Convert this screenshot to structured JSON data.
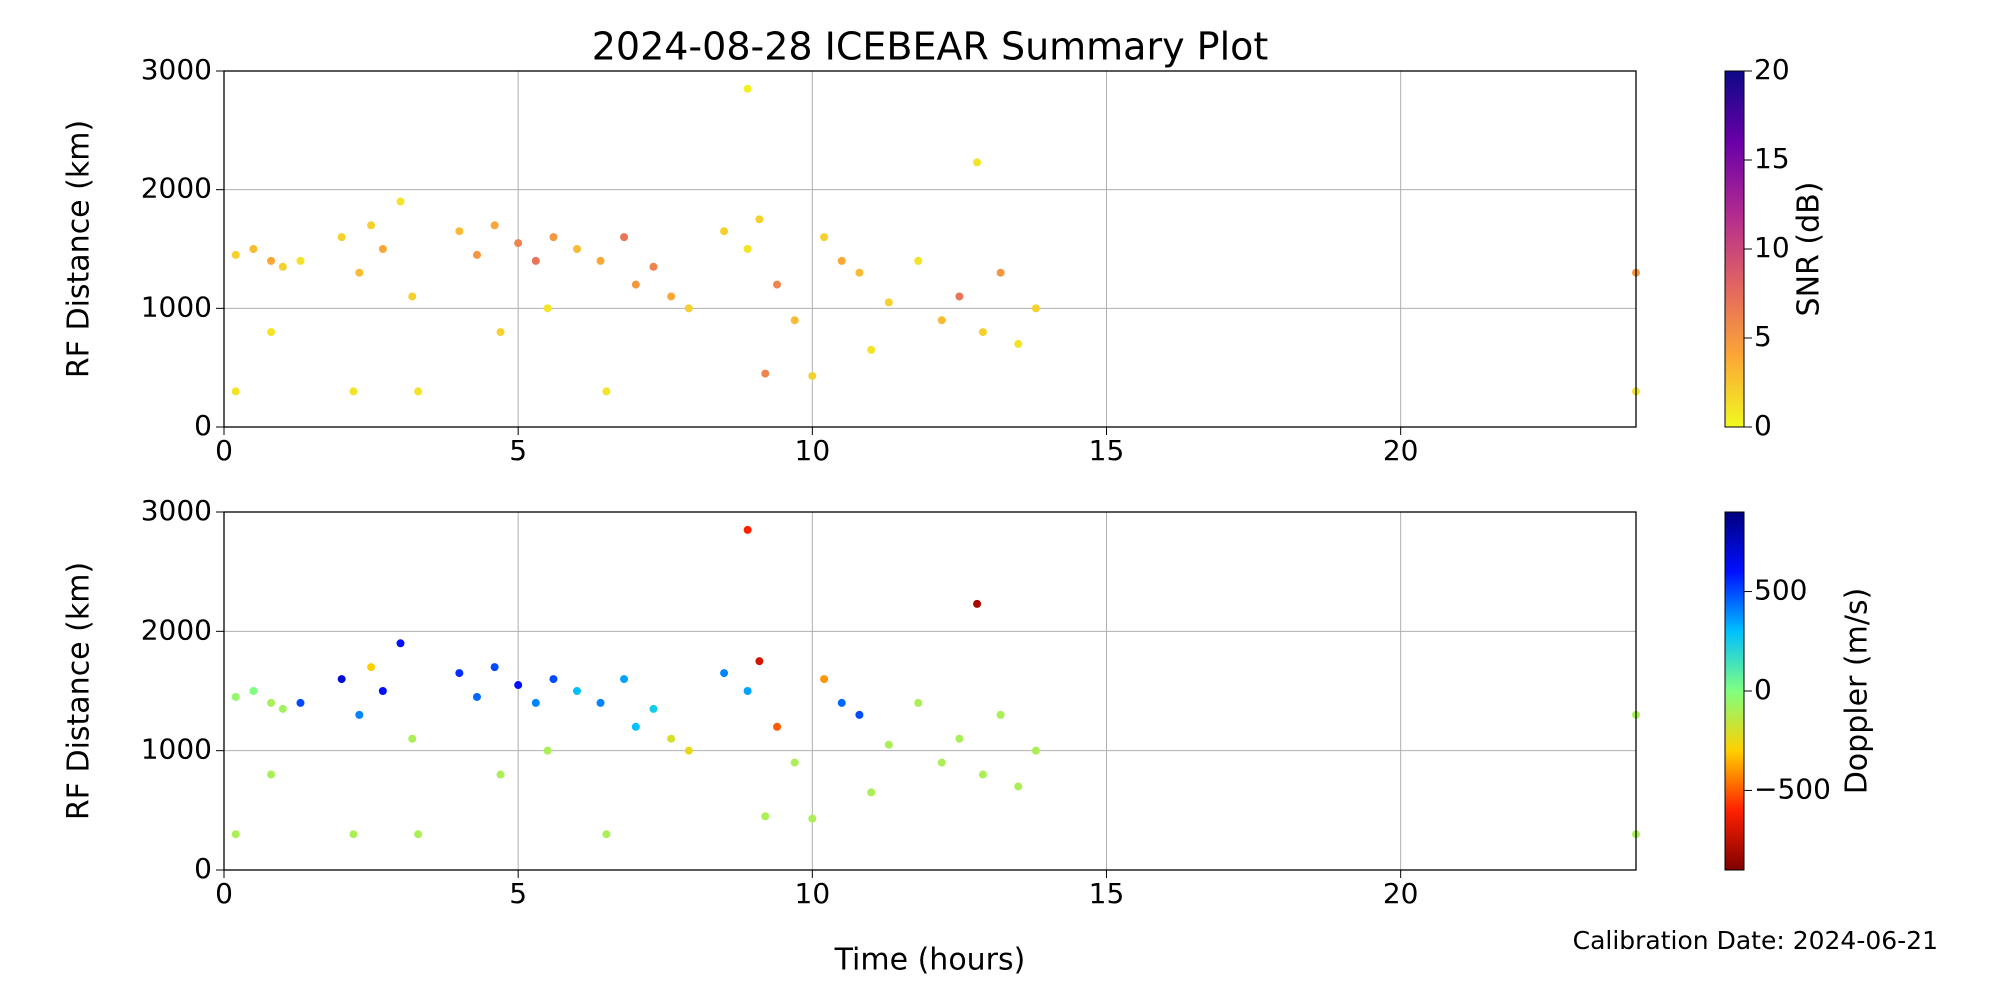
{
  "chart_data": [
    {
      "type": "scatter",
      "title": "2024-08-28 ICEBEAR Summary Plot",
      "ylabel": "RF Distance (km)",
      "xlim": [
        0,
        24
      ],
      "ylim": [
        0,
        3000
      ],
      "xticks": [
        0,
        5,
        10,
        15,
        20
      ],
      "yticks": [
        0,
        1000,
        2000,
        3000
      ],
      "grid": true,
      "x": [
        0.2,
        0.5,
        0.8,
        1.0,
        1.3,
        2.0,
        2.3,
        2.5,
        2.7,
        3.0,
        3.2,
        4.0,
        4.3,
        4.6,
        5.0,
        5.3,
        5.6,
        6.0,
        6.4,
        6.8,
        7.0,
        7.3,
        7.6,
        7.9,
        8.5,
        8.9,
        9.1,
        9.4,
        9.7,
        10.2,
        10.5,
        10.8,
        11.3,
        11.8,
        12.2,
        12.5,
        12.9,
        13.2,
        13.5,
        13.8,
        0.2,
        0.8,
        2.2,
        3.3,
        4.7,
        6.5,
        8.9,
        12.8,
        24,
        24,
        5.5,
        9.2,
        10.0,
        11.0
      ],
      "y": [
        1450,
        1500,
        1400,
        1350,
        1400,
        1600,
        1300,
        1700,
        1500,
        1900,
        1100,
        1650,
        1450,
        1700,
        1550,
        1400,
        1600,
        1500,
        1400,
        1600,
        1200,
        1350,
        1100,
        1000,
        1650,
        1500,
        1750,
        1200,
        900,
        1600,
        1400,
        1300,
        1050,
        1400,
        900,
        1100,
        800,
        1300,
        700,
        1000,
        300,
        800,
        300,
        300,
        800,
        300,
        2850,
        2230,
        1300,
        300,
        1000,
        450,
        430,
        650
      ],
      "c": [
        2,
        3,
        4,
        2,
        1,
        2,
        3,
        2,
        4,
        1,
        2,
        3,
        5,
        4,
        6,
        7,
        5,
        3,
        4,
        7,
        5,
        6,
        4,
        2,
        2,
        1,
        2,
        6,
        3,
        2,
        4,
        3,
        2,
        1,
        3,
        7,
        2,
        5,
        1,
        2,
        1,
        1,
        1,
        1,
        2,
        1,
        0.5,
        1,
        5,
        1,
        1,
        6,
        2,
        1
      ],
      "colorbar": {
        "label": "SNR (dB)",
        "lim": [
          0,
          20
        ],
        "ticks": [
          0,
          5,
          10,
          15,
          20
        ],
        "colormap": [
          "#f0f921",
          "#fca636",
          "#e16462",
          "#b12a90",
          "#6a00a8",
          "#0d0887"
        ]
      }
    },
    {
      "type": "scatter",
      "ylabel": "RF Distance (km)",
      "xlabel": "Time (hours)",
      "xlim": [
        0,
        24
      ],
      "ylim": [
        0,
        3000
      ],
      "xticks": [
        0,
        5,
        10,
        15,
        20
      ],
      "yticks": [
        0,
        1000,
        2000,
        3000
      ],
      "grid": true,
      "x": [
        0.2,
        0.5,
        0.8,
        1.0,
        1.3,
        2.0,
        2.3,
        2.5,
        2.7,
        3.0,
        3.2,
        4.0,
        4.3,
        4.6,
        5.0,
        5.3,
        5.6,
        6.0,
        6.4,
        6.8,
        7.0,
        7.3,
        7.6,
        7.9,
        8.5,
        8.9,
        9.1,
        9.4,
        9.7,
        10.2,
        10.5,
        10.8,
        11.3,
        11.8,
        12.2,
        12.5,
        12.9,
        13.2,
        13.5,
        13.8,
        0.2,
        0.8,
        2.2,
        3.3,
        4.7,
        6.5,
        8.9,
        12.8,
        24,
        24,
        5.5,
        9.2,
        10.0,
        11.0
      ],
      "y": [
        1450,
        1500,
        1400,
        1350,
        1400,
        1600,
        1300,
        1700,
        1500,
        1900,
        1100,
        1650,
        1450,
        1700,
        1550,
        1400,
        1600,
        1500,
        1400,
        1600,
        1200,
        1350,
        1100,
        1000,
        1650,
        1500,
        1750,
        1200,
        900,
        1600,
        1400,
        1300,
        1050,
        1400,
        900,
        1100,
        800,
        1300,
        700,
        1000,
        300,
        800,
        300,
        300,
        800,
        300,
        2850,
        2230,
        1300,
        300,
        1000,
        450,
        430,
        650
      ],
      "c": [
        -50,
        0,
        -100,
        -80,
        500,
        700,
        400,
        -300,
        600,
        600,
        -100,
        550,
        450,
        500,
        600,
        400,
        500,
        300,
        400,
        350,
        300,
        250,
        -200,
        -250,
        400,
        350,
        -700,
        -500,
        -100,
        -400,
        450,
        500,
        -100,
        -100,
        -100,
        -100,
        -100,
        -100,
        -100,
        -100,
        -100,
        -100,
        -100,
        -100,
        -100,
        -100,
        -600,
        -800,
        -100,
        -100,
        -100,
        -100,
        -100,
        -100
      ],
      "colorbar": {
        "label": "Doppler (m/s)",
        "lim": [
          -900,
          900
        ],
        "ticks": [
          {
            "value": -500,
            "label": "−500"
          },
          0,
          500
        ],
        "colormap": [
          "#7f0000",
          "#ff2000",
          "#ffd000",
          "#80ff80",
          "#00c0ff",
          "#0010ff",
          "#00007f"
        ]
      }
    }
  ],
  "calibration": "Calibration Date: 2024-06-21"
}
